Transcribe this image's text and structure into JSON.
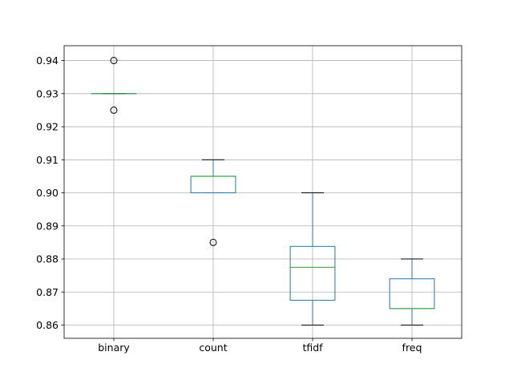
{
  "chart_data": {
    "type": "box",
    "title": "",
    "xlabel": "",
    "ylabel": "",
    "ylim": [
      0.856,
      0.9445
    ],
    "y_ticks": [
      0.86,
      0.87,
      0.88,
      0.89,
      0.9,
      0.91,
      0.92,
      0.93,
      0.94
    ],
    "y_tick_labels": [
      "0.86",
      "0.87",
      "0.88",
      "0.89",
      "0.90",
      "0.91",
      "0.92",
      "0.93",
      "0.94"
    ],
    "grid": true,
    "categories": [
      "binary",
      "count",
      "tfidf",
      "freq"
    ],
    "boxes": [
      {
        "name": "binary",
        "q1": 0.93,
        "median": 0.93,
        "q3": 0.93,
        "whisker_low": 0.93,
        "whisker_high": 0.93,
        "outliers": [
          0.94,
          0.925
        ]
      },
      {
        "name": "count",
        "q1": 0.9,
        "median": 0.905,
        "q3": 0.905,
        "whisker_low": 0.9,
        "whisker_high": 0.91,
        "outliers": [
          0.885
        ]
      },
      {
        "name": "tfidf",
        "q1": 0.8675,
        "median": 0.8775,
        "q3": 0.8838,
        "whisker_low": 0.86,
        "whisker_high": 0.9,
        "outliers": []
      },
      {
        "name": "freq",
        "q1": 0.865,
        "median": 0.865,
        "q3": 0.874,
        "whisker_low": 0.86,
        "whisker_high": 0.88,
        "outliers": []
      }
    ],
    "colors": {
      "box": "#1f77b4",
      "median": "#2ca02c",
      "whisker": "#000000",
      "grid": "#b0b0b0",
      "outlier_edge": "#000000"
    }
  }
}
